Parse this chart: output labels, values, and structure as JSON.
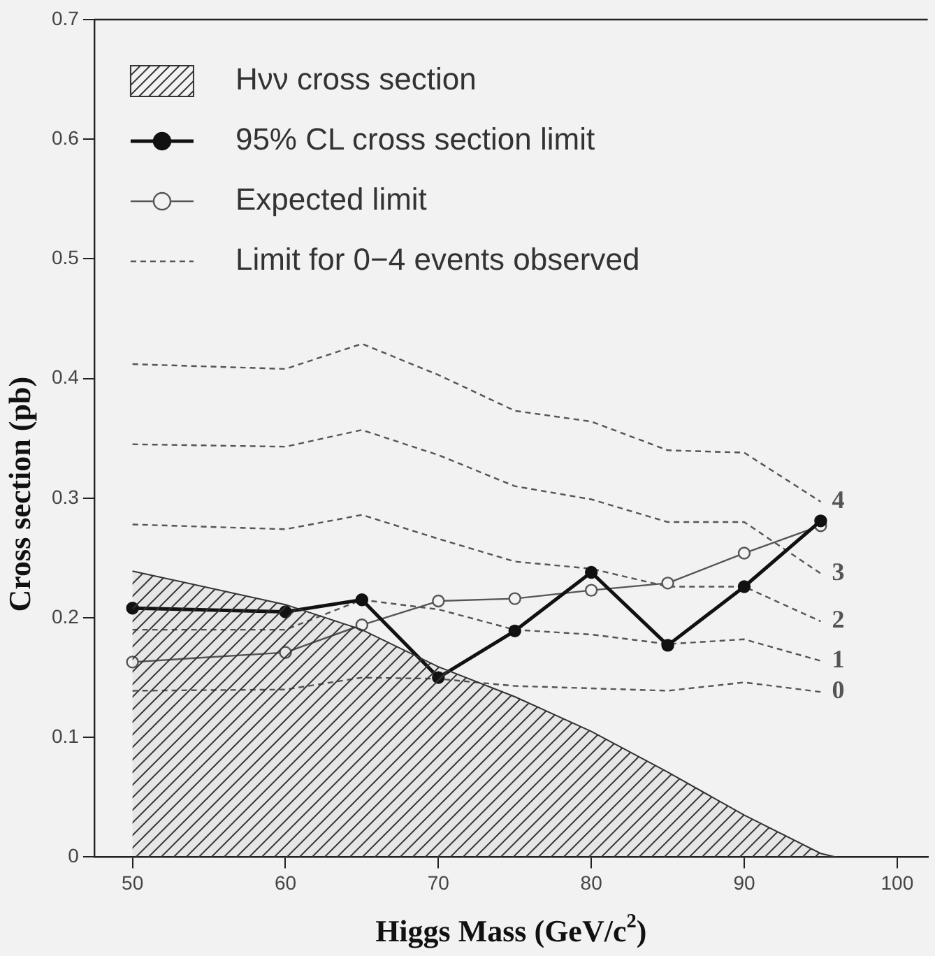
{
  "chart_data": {
    "type": "line",
    "xlabel": "Higgs Mass (GeV/c$^{2}$)",
    "ylabel": "Cross section (pb)",
    "xlim": [
      47.5,
      102
    ],
    "xticks": [
      50,
      60,
      70,
      80,
      90,
      100
    ],
    "ylim": [
      0,
      0.7
    ],
    "yticks": [
      0,
      0.1,
      0.2,
      0.3,
      0.4,
      0.5,
      0.6,
      0.7
    ],
    "grid": false,
    "legend": "top left",
    "marker": "none",
    "line_style": "solid",
    "series": [
      {
        "name": "Hνν cross section",
        "type": "area",
        "color": "#333333",
        "x": [
          50,
          60,
          65,
          70,
          75,
          80,
          85,
          90,
          95,
          96
        ],
        "values": [
          0.239,
          0.211,
          0.19,
          0.159,
          0.134,
          0.105,
          0.071,
          0.035,
          0.003,
          0
        ]
      },
      {
        "name": "95% CL cross section limit",
        "color": "#111111",
        "marker": "circle",
        "x": [
          50,
          60,
          65,
          70,
          75,
          80,
          85,
          90,
          95
        ],
        "values": [
          0.208,
          0.205,
          0.215,
          0.15,
          0.189,
          0.238,
          0.177,
          0.226,
          0.281
        ]
      },
      {
        "name": "Expected limit",
        "color": "#555555",
        "marker": "circle",
        "x": [
          50,
          60,
          65,
          70,
          75,
          80,
          85,
          90,
          95
        ],
        "values": [
          0.163,
          0.171,
          0.194,
          0.214,
          0.216,
          0.223,
          0.229,
          0.254,
          0.277
        ]
      },
      {
        "name": "0",
        "color": "#555555",
        "line_style": "dashed",
        "x": [
          50,
          60,
          65,
          70,
          75,
          80,
          85,
          90,
          95
        ],
        "values": [
          0.139,
          0.14,
          0.15,
          0.149,
          0.143,
          0.141,
          0.139,
          0.146,
          0.138
        ]
      },
      {
        "name": "1",
        "color": "#555555",
        "line_style": "dashed",
        "x": [
          50,
          60,
          65,
          70,
          75,
          80,
          85,
          90,
          95
        ],
        "values": [
          0.19,
          0.19,
          0.215,
          0.207,
          0.19,
          0.186,
          0.178,
          0.182,
          0.164
        ]
      },
      {
        "name": "2",
        "color": "#555555",
        "line_style": "dashed",
        "x": [
          50,
          60,
          65,
          70,
          75,
          80,
          85,
          90,
          95
        ],
        "values": [
          0.278,
          0.274,
          0.286,
          0.266,
          0.247,
          0.241,
          0.226,
          0.226,
          0.197
        ]
      },
      {
        "name": "3",
        "color": "#555555",
        "line_style": "dashed",
        "x": [
          50,
          60,
          65,
          70,
          75,
          80,
          85,
          90,
          95
        ],
        "values": [
          0.345,
          0.343,
          0.357,
          0.336,
          0.31,
          0.299,
          0.28,
          0.28,
          0.237
        ]
      },
      {
        "name": "4",
        "color": "#555555",
        "line_style": "dashed",
        "x": [
          50,
          60,
          65,
          70,
          75,
          80,
          85,
          90,
          95
        ],
        "values": [
          0.412,
          0.408,
          0.429,
          0.403,
          0.373,
          0.364,
          0.34,
          0.338,
          0.297
        ]
      }
    ],
    "annotations": [
      "Limit for 0−4 events observed"
    ]
  }
}
